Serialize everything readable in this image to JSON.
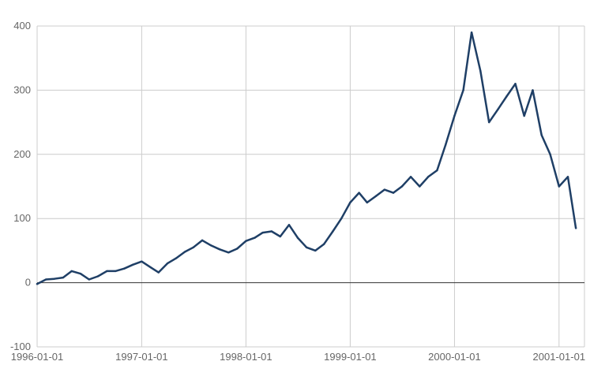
{
  "chart_data": {
    "type": "line",
    "title": "",
    "xlabel": "",
    "ylabel": "",
    "xlim": [
      "1996-01-01",
      "2001-03-31"
    ],
    "ylim": [
      -100,
      400
    ],
    "x_ticks": [
      "1996-01-01",
      "1997-01-01",
      "1998-01-01",
      "1999-01-01",
      "2000-01-01",
      "2001-01-01"
    ],
    "y_ticks": [
      -100,
      0,
      100,
      200,
      300,
      400
    ],
    "grid": true,
    "legend": "none",
    "colors": {
      "line": "#1f3f66",
      "grid": "#cccccc",
      "zero_line": "#333333",
      "tick_text": "#666666"
    },
    "series": [
      {
        "x": [
          "1996-01-01",
          "1996-02-01",
          "1996-03-01",
          "1996-04-01",
          "1996-05-01",
          "1996-06-01",
          "1996-07-01",
          "1996-08-01",
          "1996-09-01",
          "1996-10-01",
          "1996-11-01",
          "1996-12-01",
          "1997-01-01",
          "1997-02-01",
          "1997-03-01",
          "1997-04-01",
          "1997-05-01",
          "1997-06-01",
          "1997-07-01",
          "1997-08-01",
          "1997-09-01",
          "1997-10-01",
          "1997-11-01",
          "1997-12-01",
          "1998-01-01",
          "1998-02-01",
          "1998-03-01",
          "1998-04-01",
          "1998-05-01",
          "1998-06-01",
          "1998-07-01",
          "1998-08-01",
          "1998-09-01",
          "1998-10-01",
          "1998-11-01",
          "1998-12-01",
          "1999-01-01",
          "1999-02-01",
          "1999-03-01",
          "1999-04-01",
          "1999-05-01",
          "1999-06-01",
          "1999-07-01",
          "1999-08-01",
          "1999-09-01",
          "1999-10-01",
          "1999-11-01",
          "1999-12-01",
          "2000-01-01",
          "2000-02-01",
          "2000-03-01",
          "2000-04-01",
          "2000-05-01",
          "2000-06-01",
          "2000-07-01",
          "2000-08-01",
          "2000-09-01",
          "2000-10-01",
          "2000-11-01",
          "2000-12-01",
          "2001-01-01",
          "2001-02-01",
          "2001-03-01"
        ],
        "values": [
          -2,
          5,
          6,
          8,
          18,
          14,
          5,
          10,
          18,
          18,
          22,
          28,
          33,
          24,
          16,
          30,
          38,
          48,
          55,
          66,
          58,
          52,
          47,
          53,
          65,
          70,
          78,
          80,
          72,
          90,
          70,
          55,
          50,
          60,
          80,
          100,
          125,
          140,
          125,
          135,
          145,
          140,
          150,
          165,
          150,
          165,
          175,
          215,
          260,
          300,
          390,
          330,
          250,
          270,
          290,
          310,
          260,
          300,
          230,
          200,
          150,
          165,
          85
        ]
      }
    ]
  }
}
